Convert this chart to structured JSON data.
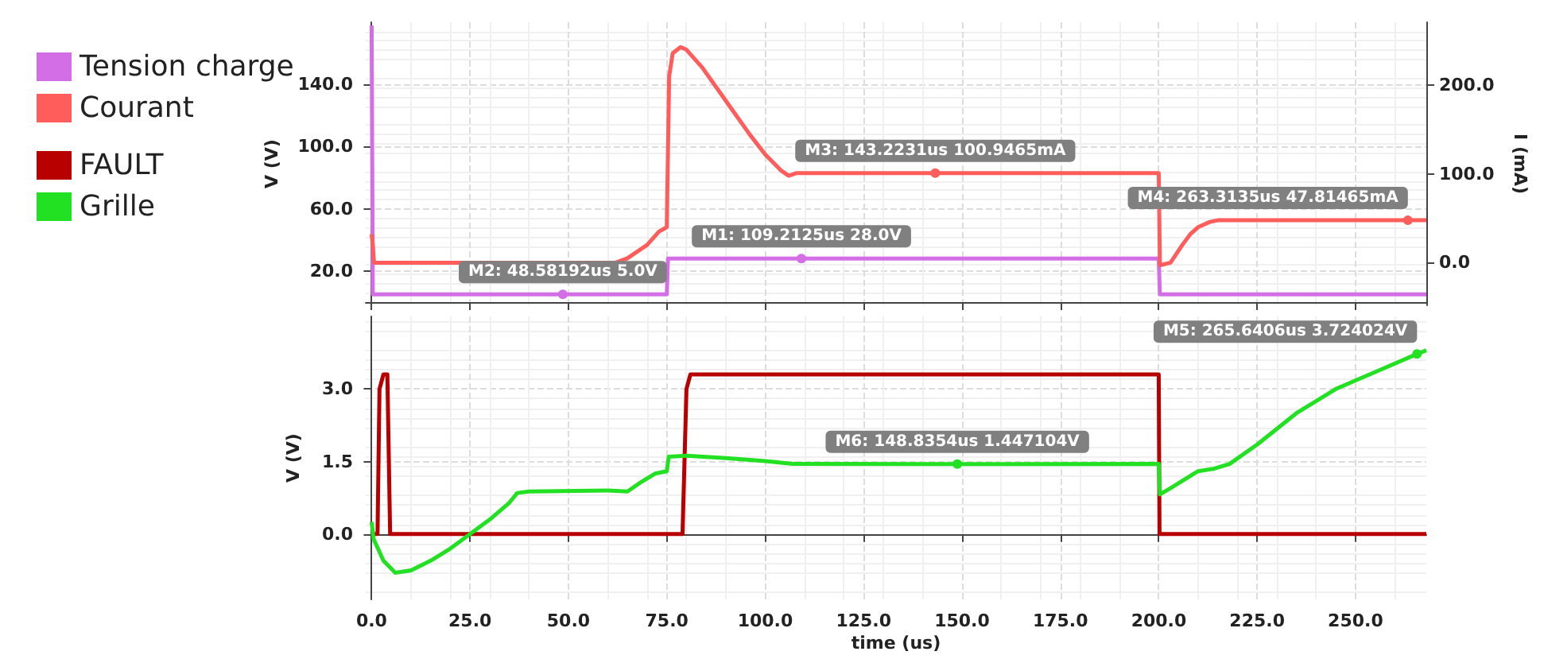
{
  "chart_data": [
    {
      "type": "line",
      "ylabel": "V (V)",
      "y2label": "I (mA)",
      "xlim": [
        -1.5,
        268
      ],
      "ylim": [
        -2,
        180
      ],
      "y2lim": [
        -48,
        271
      ],
      "xticks": [
        0,
        25,
        50,
        75,
        100,
        125,
        150,
        175,
        200,
        225,
        250
      ],
      "yticks": [
        {
          "value": 20,
          "label": "20.0"
        },
        {
          "value": 60,
          "label": "60.0"
        },
        {
          "value": 100,
          "label": "100.0"
        },
        {
          "value": 140,
          "label": "140.0"
        }
      ],
      "y2ticks": [
        {
          "value": 0,
          "label": "0.0"
        },
        {
          "value": 100,
          "label": "100.0"
        },
        {
          "value": 200,
          "label": "200.0"
        }
      ],
      "tick_labels": "y",
      "grid": true,
      "legend": "left",
      "marker": "none",
      "line_style": "solid",
      "series": [
        {
          "name": "Tension charge",
          "color": "#d46ee6",
          "x": [
            0,
            0.3,
            48.58192,
            75,
            75.3,
            109.2125,
            200,
            200.3,
            268
          ],
          "values": [
            178,
            5,
            5,
            5,
            28,
            28,
            28,
            5,
            5
          ],
          "value_labels": [
            null,
            null,
            "M2: 48.58192us 5.0V",
            null,
            null,
            "M1: 109.2125us 28.0V",
            null,
            null,
            null
          ]
        },
        {
          "name": "Courant",
          "color": "#ff5c5c",
          "axis": "y2",
          "x": [
            0,
            0.3,
            0.6,
            62,
            65,
            70,
            73,
            75,
            75.6,
            76.5,
            78.5,
            80,
            84,
            88,
            92,
            96,
            100,
            104,
            106,
            108,
            143.2231,
            200,
            200.3,
            203,
            206,
            208,
            210,
            213,
            215,
            263.3135,
            268
          ],
          "values": [
            32,
            20,
            0,
            0,
            5,
            20,
            35,
            40,
            210,
            236,
            243,
            240,
            220,
            195,
            170,
            145,
            122,
            104,
            98,
            101,
            100.9465,
            100.9,
            -3,
            0,
            20,
            32,
            40,
            46,
            47.8,
            47.81465,
            47.8
          ],
          "value_labels": [
            null,
            null,
            null,
            null,
            null,
            null,
            null,
            null,
            null,
            null,
            null,
            null,
            null,
            null,
            null,
            null,
            null,
            null,
            null,
            null,
            "M3: 143.2231us 100.9465mA",
            null,
            null,
            null,
            null,
            null,
            null,
            null,
            null,
            "M4: 263.3135us 47.81465mA",
            null
          ]
        }
      ]
    },
    {
      "type": "line",
      "xlabel": "time (us)",
      "ylabel": "V (V)",
      "xlim": [
        -1.5,
        268
      ],
      "ylim": [
        -1.35,
        4.5
      ],
      "xticks": [
        {
          "value": 0,
          "label": "0.0"
        },
        {
          "value": 25,
          "label": "25.0"
        },
        {
          "value": 50,
          "label": "50.0"
        },
        {
          "value": 75,
          "label": "75.0"
        },
        {
          "value": 100,
          "label": "100.0"
        },
        {
          "value": 125,
          "label": "125.0"
        },
        {
          "value": 150,
          "label": "150.0"
        },
        {
          "value": 175,
          "label": "175.0"
        },
        {
          "value": 200,
          "label": "200.0"
        },
        {
          "value": 225,
          "label": "225.0"
        },
        {
          "value": 250,
          "label": "250.0"
        }
      ],
      "yticks": [
        {
          "value": 0,
          "label": "0.0"
        },
        {
          "value": 1.5,
          "label": "1.5"
        },
        {
          "value": 3,
          "label": "3.0"
        }
      ],
      "grid": true,
      "legend": "left",
      "marker": "none",
      "line_style": "solid",
      "series": [
        {
          "name": "FAULT",
          "color": "#b80000",
          "x": [
            0,
            1.5,
            2,
            3,
            4,
            4.7,
            79,
            80,
            81,
            200,
            200.2,
            268
          ],
          "values": [
            0,
            0,
            3.0,
            3.3,
            3.3,
            0,
            0,
            3.0,
            3.3,
            3.3,
            0,
            0
          ]
        },
        {
          "name": "Grille",
          "color": "#22e022",
          "x": [
            0,
            0.5,
            3,
            6,
            10,
            15,
            20,
            25,
            30,
            35,
            37,
            40,
            60,
            65,
            68,
            72,
            75,
            75.5,
            80,
            90,
            100,
            107,
            148.8354,
            200,
            200.3,
            203,
            206,
            210,
            214,
            218,
            225,
            235,
            245,
            255,
            265.6406,
            268
          ],
          "values": [
            0.25,
            -0.1,
            -0.55,
            -0.8,
            -0.75,
            -0.55,
            -0.3,
            0,
            0.3,
            0.65,
            0.85,
            0.88,
            0.9,
            0.88,
            1.05,
            1.25,
            1.3,
            1.6,
            1.62,
            1.57,
            1.51,
            1.45,
            1.447104,
            1.45,
            0.82,
            0.95,
            1.1,
            1.3,
            1.35,
            1.45,
            1.85,
            2.5,
            3.0,
            3.35,
            3.724024,
            3.8
          ],
          "value_labels": [
            null,
            null,
            null,
            null,
            null,
            null,
            null,
            null,
            null,
            null,
            null,
            null,
            null,
            null,
            null,
            null,
            null,
            null,
            null,
            null,
            null,
            null,
            "M6: 148.8354us 1.447104V",
            null,
            null,
            null,
            null,
            null,
            null,
            null,
            null,
            null,
            null,
            null,
            "M5: 265.6406us 3.724024V",
            null
          ]
        }
      ]
    }
  ]
}
